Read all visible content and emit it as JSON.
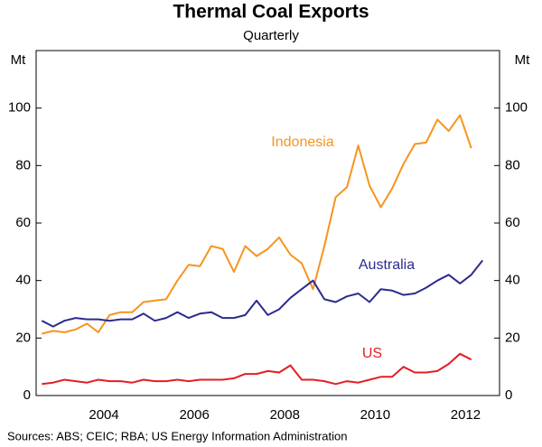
{
  "chart_data": {
    "type": "line",
    "title": "Thermal Coal Exports",
    "subtitle": "Quarterly",
    "y_label": "Mt",
    "source": "Sources: ABS; CEIC; RBA; US Energy Information Administration",
    "x": [
      2003.125,
      2003.375,
      2003.625,
      2003.875,
      2004.125,
      2004.375,
      2004.625,
      2004.875,
      2005.125,
      2005.375,
      2005.625,
      2005.875,
      2006.125,
      2006.375,
      2006.625,
      2006.875,
      2007.125,
      2007.375,
      2007.625,
      2007.875,
      2008.125,
      2008.375,
      2008.625,
      2008.875,
      2009.125,
      2009.375,
      2009.625,
      2009.875,
      2010.125,
      2010.375,
      2010.625,
      2010.875,
      2011.125,
      2011.375,
      2011.625,
      2011.875,
      2012.125,
      2012.375,
      2012.625,
      2012.875
    ],
    "xlim": [
      2003,
      2013.25
    ],
    "xticks": [
      {
        "value": 2004.5,
        "label": "2004"
      },
      {
        "value": 2006.5,
        "label": "2006"
      },
      {
        "value": 2008.5,
        "label": "2008"
      },
      {
        "value": 2010.5,
        "label": "2010"
      },
      {
        "value": 2012.5,
        "label": "2012"
      }
    ],
    "ylim": [
      0,
      120
    ],
    "yticks": [
      0,
      20,
      40,
      60,
      80,
      100
    ],
    "grid": false,
    "series": [
      {
        "name": "Indonesia",
        "color": "#f7941d",
        "values": [
          21.5,
          22.5,
          22,
          23,
          25,
          22,
          28,
          29,
          29,
          32.5,
          33,
          33.5,
          40,
          45.5,
          45,
          52,
          51,
          43,
          52,
          48.5,
          51,
          55,
          49,
          46,
          37,
          52,
          69,
          72.5,
          87,
          73,
          65.5,
          72,
          80.5,
          87.5,
          88,
          96,
          92,
          97.5,
          86,
          null
        ]
      },
      {
        "name": "Australia",
        "color": "#2b2b8f",
        "values": [
          26,
          24,
          26,
          27,
          26.5,
          26.5,
          26,
          26.5,
          26.5,
          28.5,
          26,
          27,
          29,
          27,
          28.5,
          29,
          27,
          27,
          28,
          33,
          28,
          30,
          34,
          37,
          40,
          33.5,
          32.5,
          34.5,
          35.5,
          32.5,
          37,
          36.5,
          35,
          35.5,
          37.5,
          40,
          42,
          39,
          42,
          47
        ]
      },
      {
        "name": "US",
        "color": "#e31e24",
        "values": [
          4,
          4.5,
          5.5,
          5,
          4.5,
          5.5,
          5,
          5,
          4.5,
          5.5,
          5,
          5,
          5.5,
          5,
          5.5,
          5.5,
          5.5,
          6,
          7.5,
          7.5,
          8.5,
          8,
          10.5,
          5.5,
          5.5,
          5,
          4,
          5,
          4.5,
          5.5,
          6.5,
          6.5,
          10,
          8,
          8,
          8.5,
          11,
          14.5,
          12.5,
          null
        ]
      }
    ]
  }
}
